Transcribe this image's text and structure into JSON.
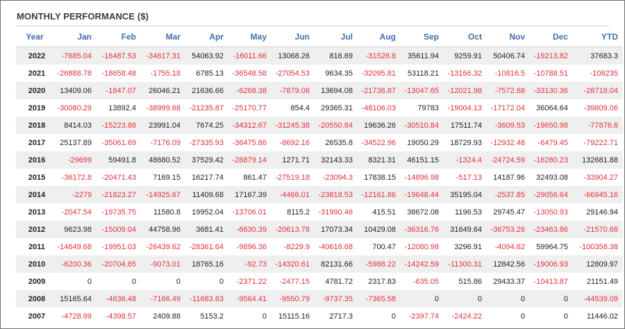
{
  "title": "MONTHLY PERFORMANCE ($)",
  "colors": {
    "negative": "#e4303c",
    "header": "#3f6fa8",
    "stripe": "#efefef"
  },
  "columns": [
    "Year",
    "Jan",
    "Feb",
    "Mar",
    "Apr",
    "May",
    "Jun",
    "Jul",
    "Aug",
    "Sep",
    "Oct",
    "Nov",
    "Dec",
    "YTD"
  ],
  "rows": [
    [
      "2022",
      "-7685.04",
      "-16487.53",
      "-34617.31",
      "54063.92",
      "-16011.66",
      "13068.26",
      "816.69",
      "-31528.8",
      "35611.94",
      "9259.91",
      "50406.74",
      "-19213.82",
      "37683.3"
    ],
    [
      "2021",
      "-26888.78",
      "-18658.48",
      "-1755.18",
      "6785.13",
      "-36548.58",
      "-27054.53",
      "9634.35",
      "-32095.81",
      "53118.21",
      "-13166.32",
      "-10816.5",
      "-10788.51",
      "-108235"
    ],
    [
      "2020",
      "13409.06",
      "-1847.07",
      "26046.21",
      "21636.66",
      "-6268.38",
      "-7879.06",
      "13694.08",
      "-21736.87",
      "-13047.65",
      "-12021.98",
      "-7572.68",
      "-33130.36",
      "-28718.04"
    ],
    [
      "2019",
      "-30080.29",
      "13892.4",
      "-38999.68",
      "-21235.87",
      "-25170.77",
      "854.4",
      "29365.31",
      "-48106.03",
      "79783",
      "-19004.13",
      "-17172.04",
      "36064.64",
      "-39809.06"
    ],
    [
      "2018",
      "8414.03",
      "-15223.88",
      "23991.04",
      "7674.25",
      "-34312.67",
      "-31245.38",
      "-20550.84",
      "19636.26",
      "-30510.84",
      "17511.74",
      "-3609.53",
      "-19650.98",
      "-77876.8"
    ],
    [
      "2017",
      "25137.89",
      "-35061.69",
      "-7176.09",
      "-27335.93",
      "-36475.86",
      "-8692.16",
      "26535.8",
      "-34522.96",
      "19050.29",
      "18729.93",
      "-12932.48",
      "-6479.45",
      "-79222.71"
    ],
    [
      "2016",
      "-29699",
      "59491.8",
      "48680.52",
      "37529.42",
      "-28879.14",
      "1271.71",
      "32143.33",
      "8321.31",
      "46151.15",
      "-1324.4",
      "-24724.59",
      "-16280.23",
      "132681.88"
    ],
    [
      "2015",
      "-36172.8",
      "-20471.43",
      "7169.15",
      "16217.74",
      "861.47",
      "-27519.18",
      "-23094.3",
      "17838.15",
      "-14896.98",
      "-517.13",
      "14187.96",
      "32493.08",
      "-33904.27"
    ],
    [
      "2014",
      "-2279",
      "-21823.27",
      "-14925.67",
      "11409.68",
      "17167.39",
      "-4466.01",
      "-23818.53",
      "-12161.86",
      "-19648.44",
      "35195.04",
      "-2537.85",
      "-29056.64",
      "-66945.16"
    ],
    [
      "2013",
      "-2047.54",
      "-19735.75",
      "11580.8",
      "19952.04",
      "-13706.01",
      "8115.2",
      "-31990.46",
      "415.51",
      "38672.08",
      "1196.53",
      "29745.47",
      "-13050.93",
      "29146.94"
    ],
    [
      "2012",
      "9623.98",
      "-15009.04",
      "44758.96",
      "3681.41",
      "-6630.39",
      "-20613.78",
      "17073.34",
      "10429.08",
      "-36316.76",
      "31649.64",
      "-36753.26",
      "-23463.86",
      "-21570.68"
    ],
    [
      "2011",
      "-14649.68",
      "-19951.03",
      "-26439.62",
      "-28361.64",
      "-9896.36",
      "-8229.9",
      "-40616.68",
      "700.47",
      "-12080.98",
      "3296.91",
      "-4094.62",
      "59964.75",
      "-100358.38"
    ],
    [
      "2010",
      "-6200.36",
      "-20704.65",
      "-9073.01",
      "18765.16",
      "-92.73",
      "-14320.61",
      "82131.66",
      "-5988.22",
      "-14242.59",
      "-11300.31",
      "12842.56",
      "-19006.93",
      "12809.97"
    ],
    [
      "2009",
      "0",
      "0",
      "0",
      "0",
      "-2371.22",
      "-2477.15",
      "4781.72",
      "2317.83",
      "-635.05",
      "515.86",
      "29433.37",
      "-10413.87",
      "21151.49"
    ],
    [
      "2008",
      "15165.64",
      "-4636.48",
      "-7166.49",
      "-11683.63",
      "-9564.41",
      "-9550.79",
      "-9737.35",
      "-7365.58",
      "0",
      "0",
      "0",
      "0",
      "-44539.09"
    ],
    [
      "2007",
      "-4728.99",
      "-4398.57",
      "2409.88",
      "5153.2",
      "0",
      "15115.16",
      "2717.3",
      "0",
      "-2397.74",
      "-2424.22",
      "0",
      "0",
      "11446.02"
    ]
  ]
}
